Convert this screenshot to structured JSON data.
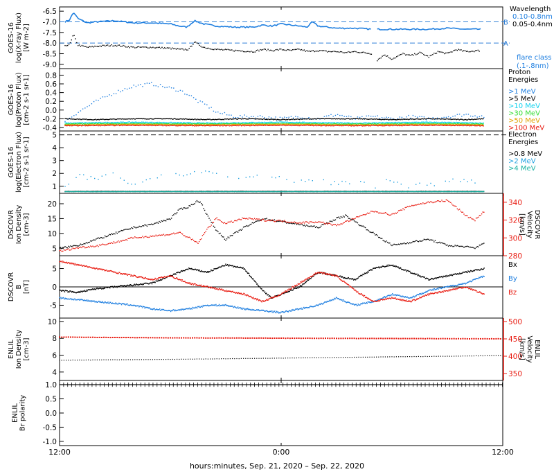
{
  "figure": {
    "xlabel": "hours:minutes, Sep. 21, 2020 – Sep. 22, 2020",
    "x_ticks": [
      "12:00",
      "0:00",
      "12:00"
    ],
    "x_range_hours": [
      0,
      24
    ],
    "x_tick_hours": [
      0,
      12,
      24
    ]
  },
  "chart_data": [
    {
      "type": "line",
      "panel": "xray",
      "ylabel": [
        "GOES-16",
        "log(X-ray Flux)",
        "[W m-2]"
      ],
      "yticks": [
        "-6.5",
        "-7.0",
        "-7.5",
        "-8.0",
        "-8.5",
        "-9.0"
      ],
      "ylim": [
        -9.2,
        -6.3
      ],
      "legend_title": "Wavelength",
      "legend": [
        "0.10-0.8nm",
        "0.05-0.4nm"
      ],
      "reference_lines": [
        {
          "y": -7.0,
          "label": "B"
        },
        {
          "y": -8.0,
          "label": "A"
        }
      ],
      "note": [
        "flare class",
        "(.1-.8nm)"
      ],
      "colors": {
        "long": "#1f7fe0",
        "short": "#000000",
        "ref": "#2f7fd6"
      },
      "series": [
        {
          "name": "0.10-0.8nm",
          "color": "#1f7fe0",
          "x": [
            0.3,
            0.55,
            0.75,
            1.0,
            1.5,
            2.0,
            3.0,
            4.0,
            5.0,
            6.0,
            6.5,
            6.9,
            7.3,
            7.8,
            8.5,
            9.5,
            10.5,
            11.0,
            11.5,
            12.0,
            12.5,
            13.0,
            13.4,
            13.7,
            14.0,
            14.5,
            15.0,
            16.0,
            16.9
          ],
          "y": [
            -7.0,
            -6.9,
            -6.55,
            -6.85,
            -7.05,
            -7.0,
            -6.95,
            -7.05,
            -7.05,
            -7.1,
            -7.2,
            -7.25,
            -6.95,
            -7.1,
            -7.2,
            -7.25,
            -7.25,
            -7.15,
            -7.2,
            -7.1,
            -7.15,
            -7.2,
            -7.25,
            -7.0,
            -7.2,
            -7.25,
            -7.3,
            -7.3,
            -7.35
          ]
        },
        {
          "name": "0.10-0.8nm",
          "color": "#1f7fe0",
          "x": [
            17.2,
            18.0,
            19.0,
            20.0,
            21.0,
            22.0,
            22.8
          ],
          "y": [
            -7.35,
            -7.35,
            -7.35,
            -7.35,
            -7.3,
            -7.35,
            -7.35
          ]
        },
        {
          "name": "0.05-0.4nm",
          "color": "#000000",
          "style": "dots",
          "x": [
            0.3,
            0.6,
            0.75,
            1.0,
            1.5,
            2.0,
            3.0,
            4.0,
            5.0,
            6.0,
            6.5,
            7.0,
            7.3,
            7.8,
            8.5,
            9.5,
            10.5,
            11.0,
            11.5,
            12.0,
            12.5,
            13.0,
            13.5,
            14.0,
            14.5,
            15.0,
            15.5,
            16.0,
            16.9
          ],
          "y": [
            -8.15,
            -8.0,
            -7.6,
            -8.1,
            -8.2,
            -8.15,
            -8.1,
            -8.2,
            -8.2,
            -8.25,
            -8.3,
            -8.3,
            -7.95,
            -8.2,
            -8.3,
            -8.35,
            -8.4,
            -8.3,
            -8.35,
            -8.3,
            -8.35,
            -8.3,
            -8.4,
            -8.35,
            -8.4,
            -8.4,
            -8.45,
            -8.4,
            -8.5
          ]
        },
        {
          "name": "0.05-0.4nm",
          "color": "#000000",
          "style": "dots",
          "x": [
            17.2,
            17.6,
            18.0,
            18.6,
            19.0,
            19.5,
            20.0,
            20.5,
            21.0,
            21.5,
            22.0,
            22.8
          ],
          "y": [
            -8.8,
            -8.55,
            -8.75,
            -8.5,
            -8.6,
            -8.45,
            -8.65,
            -8.4,
            -8.5,
            -8.3,
            -8.4,
            -8.35
          ]
        }
      ]
    },
    {
      "type": "scatter",
      "panel": "proton",
      "ylabel": [
        "GOES-16",
        "log(Proton Flux)",
        "[cm-2 s-1 sr-1]"
      ],
      "yticks": [
        "0.8",
        "0.6",
        "0.4",
        "0.2",
        "0.0",
        "-0.2",
        "-0.4"
      ],
      "ylim": [
        -0.48,
        0.95
      ],
      "legend_title": [
        "Proton",
        "Energies"
      ],
      "legend": [
        ">1 MeV",
        ">5 MeV",
        ">10 MeV",
        ">30 MeV",
        ">50 MeV",
        ">100 MeV"
      ],
      "series": [
        {
          "name": ">1 MeV",
          "color": "#1f7fe0",
          "x": [
            0.3,
            1,
            2,
            3,
            4,
            5,
            6,
            6.5,
            7,
            7.5,
            8,
            8.5,
            9,
            9.5,
            10,
            11,
            12,
            13,
            14,
            15,
            16,
            17,
            18,
            19,
            20,
            21,
            22,
            23
          ],
          "y": [
            -0.25,
            -0.05,
            0.2,
            0.4,
            0.55,
            0.6,
            0.5,
            0.45,
            0.35,
            0.2,
            0.1,
            -0.05,
            -0.1,
            -0.15,
            -0.15,
            -0.15,
            -0.2,
            -0.15,
            -0.2,
            -0.1,
            -0.2,
            -0.15,
            -0.2,
            -0.15,
            -0.2,
            -0.15,
            -0.1,
            -0.15
          ]
        },
        {
          "name": ">5 MeV",
          "color": "#000000",
          "x": [
            0.3,
            2,
            4,
            6,
            8,
            10,
            12,
            14,
            16,
            18,
            20,
            22,
            23
          ],
          "y": [
            -0.2,
            -0.22,
            -0.2,
            -0.2,
            -0.22,
            -0.2,
            -0.22,
            -0.2,
            -0.2,
            -0.22,
            -0.2,
            -0.22,
            -0.2
          ]
        },
        {
          "name": ">10 MeV",
          "color": "#11d2ee",
          "x": [
            0.3,
            4,
            8,
            12,
            16,
            20,
            23
          ],
          "y": [
            -0.3,
            -0.28,
            -0.3,
            -0.28,
            -0.3,
            -0.28,
            -0.3
          ]
        },
        {
          "name": ">30 MeV",
          "color": "#33dd33",
          "x": [
            0.3,
            4,
            8,
            12,
            16,
            20,
            23
          ],
          "y": [
            -0.32,
            -0.31,
            -0.32,
            -0.31,
            -0.32,
            -0.31,
            -0.32
          ]
        },
        {
          "name": ">50 MeV",
          "color": "#e0a000",
          "x": [
            0.3,
            4,
            8,
            12,
            16,
            20,
            23
          ],
          "y": [
            -0.34,
            -0.33,
            -0.34,
            -0.33,
            -0.34,
            -0.33,
            -0.34
          ]
        },
        {
          "name": ">100 MeV",
          "color": "#e8190f",
          "x": [
            0.3,
            4,
            8,
            12,
            16,
            20,
            23
          ],
          "y": [
            -0.36,
            -0.35,
            -0.36,
            -0.35,
            -0.36,
            -0.35,
            -0.36
          ]
        }
      ]
    },
    {
      "type": "scatter",
      "panel": "electron",
      "ylabel": [
        "GOES-16",
        "log(Electron Flux)",
        "[cm-2 s-1 sr-1]"
      ],
      "yticks": [
        "5",
        "4",
        "3",
        "2",
        "1"
      ],
      "ylim": [
        0.45,
        5.3
      ],
      "reference_lines": [
        {
          "y": 5.0
        }
      ],
      "legend_title": [
        "Electron",
        "Energies"
      ],
      "legend": [
        ">0.8 MeV",
        ">2 MeV",
        ">4 MeV"
      ],
      "series": [
        {
          "name": ">0.8 MeV",
          "color": "#000000",
          "x": [
            0.3,
            23
          ],
          "y": [
            0.6,
            0.6
          ]
        },
        {
          "name": ">2 MeV",
          "color": "#1fa0e0",
          "x": [
            0.3,
            1,
            2,
            3,
            4,
            5,
            6,
            7,
            8,
            9,
            10,
            11,
            12,
            13,
            14,
            15,
            16,
            17,
            18,
            19,
            20,
            21,
            22,
            23
          ],
          "y": [
            1.0,
            1.8,
            1.5,
            1.9,
            1.2,
            1.8,
            1.9,
            2.0,
            2.1,
            1.9,
            1.6,
            1.9,
            1.6,
            1.4,
            1.5,
            1.2,
            1.4,
            1.0,
            1.5,
            1.0,
            1.2,
            1.3,
            1.6,
            1.1
          ]
        },
        {
          "name": ">4 MeV",
          "color": "#16b0a0",
          "x": [
            0.3,
            23
          ],
          "y": [
            0.58,
            0.58
          ]
        }
      ]
    },
    {
      "type": "scatter",
      "panel": "dscovr_plasma",
      "ylabel": [
        "DSCOVR",
        "Ion Density",
        "[cm-3]"
      ],
      "yticks": [
        "20",
        "15",
        "10",
        "5"
      ],
      "ylim": [
        2.5,
        23.5
      ],
      "y2label": [
        "DSCOVR",
        "Velocity",
        "[km/s]"
      ],
      "y2ticks": [
        "340",
        "320",
        "300",
        "280"
      ],
      "y2lim": [
        280,
        350
      ],
      "series": [
        {
          "name": "density",
          "color": "#000000",
          "x": [
            0,
            1,
            2,
            3,
            4,
            5,
            6,
            6.5,
            7,
            7.5,
            7.7,
            8,
            8.5,
            9,
            10,
            11,
            12,
            13,
            14,
            15,
            15.5,
            16,
            16.5,
            17,
            17.5,
            18,
            19,
            20,
            21,
            22,
            22.5,
            23
          ],
          "y": [
            5,
            6,
            8,
            10,
            12,
            13,
            15,
            18,
            19,
            21,
            20,
            16,
            11,
            8,
            12,
            15,
            14,
            13,
            12,
            15,
            16,
            14,
            12,
            10,
            8,
            6,
            7,
            8,
            6,
            5.5,
            5,
            7
          ]
        },
        {
          "name": "velocity",
          "color": "#e8190f",
          "x": [
            0,
            1,
            2,
            3,
            4,
            5,
            6,
            6.5,
            7,
            7.5,
            8,
            8.5,
            9,
            10,
            11,
            12,
            13,
            14,
            15,
            16,
            17,
            18,
            19,
            20,
            21,
            21.5,
            22,
            22.5,
            23
          ],
          "y": [
            285,
            289,
            291,
            295,
            300,
            302,
            304,
            306,
            300,
            294,
            310,
            322,
            316,
            322,
            320,
            319,
            317,
            318,
            314,
            322,
            330,
            326,
            336,
            340,
            342,
            334,
            325,
            320,
            330
          ]
        }
      ]
    },
    {
      "type": "line",
      "panel": "dscovr_mag",
      "ylabel": [
        "DSCOVR",
        "B",
        "[nT]"
      ],
      "yticks": [
        "5",
        "0",
        "-5"
      ],
      "ylim": [
        -8.5,
        8.5
      ],
      "legend": [
        "Bx",
        "By",
        "Bz"
      ],
      "series": [
        {
          "name": "Bx",
          "color": "#000000",
          "x": [
            0,
            1,
            2,
            3,
            4,
            5,
            6,
            7,
            8,
            9,
            10,
            10.5,
            11,
            11.5,
            12,
            13,
            14,
            15,
            16,
            17,
            18,
            19,
            20,
            21,
            22,
            23
          ],
          "y": [
            -1,
            -1.5,
            -0.5,
            0,
            0.5,
            1,
            3,
            5,
            4,
            6,
            5,
            2,
            -1,
            -3,
            -2,
            0,
            4,
            3,
            2,
            5,
            6,
            4,
            2,
            3,
            4,
            5
          ]
        },
        {
          "name": "By",
          "color": "#1f7fe0",
          "x": [
            0,
            1,
            2,
            3,
            4,
            5,
            6,
            7,
            8,
            9,
            10,
            11,
            12,
            13,
            14,
            15,
            16,
            17,
            18,
            19,
            20,
            21,
            22,
            23
          ],
          "y": [
            -3,
            -3.5,
            -4,
            -4.5,
            -5,
            -6,
            -6.5,
            -6,
            -5,
            -5,
            -6,
            -6.5,
            -7,
            -6,
            -5,
            -3,
            -5,
            -4,
            -2,
            -3,
            -1,
            0,
            1,
            3
          ]
        },
        {
          "name": "Bz",
          "color": "#e8190f",
          "x": [
            0,
            1,
            2,
            3,
            4,
            5,
            6,
            7,
            8,
            9,
            10,
            11,
            12,
            13,
            14,
            15,
            16,
            17,
            18,
            19,
            20,
            21,
            22,
            23
          ],
          "y": [
            7,
            6,
            5,
            4,
            3,
            2,
            3,
            1,
            0,
            -1,
            -2,
            -4,
            -2,
            1,
            4,
            3,
            -1,
            -4,
            -3,
            -4,
            -2,
            -1,
            0,
            -2
          ]
        }
      ]
    },
    {
      "type": "scatter",
      "panel": "enlil_plasma",
      "ylabel": [
        "ENLIL",
        "Ion Density",
        "[cm-3]"
      ],
      "yticks": [
        "10",
        "8",
        "6",
        "4"
      ],
      "ylim": [
        3,
        10.4
      ],
      "y2label": [
        "ENLIL",
        "Velocity",
        "[km/s]"
      ],
      "y2ticks": [
        "500",
        "450",
        "400",
        "350"
      ],
      "y2lim": [
        330,
        510
      ],
      "series": [
        {
          "name": "density",
          "color": "#000000",
          "x": [
            0,
            6,
            12,
            18,
            24
          ],
          "y": [
            5.4,
            5.5,
            5.65,
            5.8,
            5.95
          ]
        },
        {
          "name": "velocity",
          "color": "#e8190f",
          "x": [
            0,
            6,
            12,
            18,
            24
          ],
          "y": [
            455,
            453,
            452,
            451,
            450
          ]
        }
      ]
    },
    {
      "type": "line",
      "panel": "enlil_polarity",
      "ylabel": [
        "ENLIL",
        "Br polarity"
      ],
      "yticks": [
        "1.0",
        "0.5",
        "0.0",
        "-0.5",
        "-1.0"
      ],
      "ylim": [
        -1.15,
        1.15
      ],
      "series": [
        {
          "name": "polarity",
          "color": "#000000",
          "x": [
            0,
            24
          ],
          "y": [
            1.0,
            1.0
          ]
        }
      ]
    }
  ]
}
